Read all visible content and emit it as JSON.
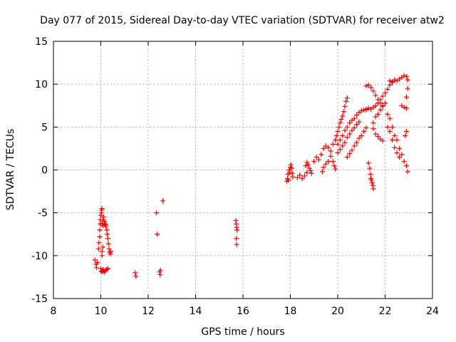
{
  "chart_data": {
    "type": "scatter",
    "title": "Day 077 of 2015, Sidereal Day-to-day VTEC variation (SDTVAR) for receiver atw2",
    "xlabel": "GPS time / hours",
    "ylabel": "SDTVAR / TECUs",
    "xlim": [
      8,
      24
    ],
    "ylim": [
      -15,
      15
    ],
    "xticks": [
      8,
      10,
      12,
      14,
      16,
      18,
      20,
      22,
      24
    ],
    "yticks": [
      -15,
      -10,
      -5,
      0,
      5,
      10,
      15
    ],
    "grid": true,
    "marker": "+",
    "color": "#ff0000",
    "series": [
      {
        "name": "SDTVAR",
        "points": [
          [
            9.75,
            -10.5
          ],
          [
            9.8,
            -11.0
          ],
          [
            9.82,
            -11.4
          ],
          [
            9.85,
            -10.8
          ],
          [
            9.9,
            -9.2
          ],
          [
            9.92,
            -8.5
          ],
          [
            9.95,
            -7.8
          ],
          [
            9.95,
            -7.0
          ],
          [
            9.97,
            -6.3
          ],
          [
            9.98,
            -5.8
          ],
          [
            10.0,
            -5.3
          ],
          [
            10.02,
            -5.0
          ],
          [
            10.03,
            -4.7
          ],
          [
            10.05,
            -4.5
          ],
          [
            10.0,
            -11.5
          ],
          [
            10.02,
            -11.8
          ],
          [
            10.05,
            -11.9
          ],
          [
            10.08,
            -11.7
          ],
          [
            10.1,
            -11.6
          ],
          [
            10.12,
            -11.8
          ],
          [
            10.15,
            -11.9
          ],
          [
            10.2,
            -11.7
          ],
          [
            10.25,
            -11.6
          ],
          [
            10.3,
            -11.5
          ],
          [
            10.05,
            -6.2
          ],
          [
            10.08,
            -6.5
          ],
          [
            10.1,
            -5.8
          ],
          [
            10.12,
            -5.5
          ],
          [
            10.15,
            -6.0
          ],
          [
            10.18,
            -6.4
          ],
          [
            10.2,
            -6.3
          ],
          [
            10.22,
            -6.6
          ],
          [
            10.25,
            -7.0
          ],
          [
            10.27,
            -7.5
          ],
          [
            10.3,
            -8.0
          ],
          [
            10.32,
            -8.6
          ],
          [
            10.35,
            -9.2
          ],
          [
            10.37,
            -9.6
          ],
          [
            10.4,
            -9.8
          ],
          [
            10.42,
            -9.5
          ],
          [
            10.05,
            -10.0
          ],
          [
            10.05,
            -9.5
          ],
          [
            10.08,
            -9.0
          ],
          [
            11.45,
            -12.0
          ],
          [
            11.48,
            -12.4
          ],
          [
            12.35,
            -5.0
          ],
          [
            12.38,
            -7.5
          ],
          [
            12.48,
            -11.9
          ],
          [
            12.5,
            -12.2
          ],
          [
            12.52,
            -11.7
          ],
          [
            12.62,
            -3.6
          ],
          [
            15.7,
            -5.9
          ],
          [
            15.72,
            -6.3
          ],
          [
            15.73,
            -6.7
          ],
          [
            15.75,
            -7.0
          ],
          [
            15.72,
            -8.0
          ],
          [
            15.73,
            -8.7
          ],
          [
            17.85,
            -1.3
          ],
          [
            17.88,
            -1.0
          ],
          [
            17.9,
            -0.5
          ],
          [
            17.93,
            -1.2
          ],
          [
            17.95,
            0.0
          ],
          [
            17.97,
            -0.3
          ],
          [
            18.0,
            0.3
          ],
          [
            18.02,
            0.6
          ],
          [
            18.05,
            0.2
          ],
          [
            18.08,
            -0.4
          ],
          [
            18.1,
            -0.8
          ],
          [
            18.3,
            -0.9
          ],
          [
            18.4,
            -0.6
          ],
          [
            18.5,
            -1.0
          ],
          [
            18.6,
            -0.7
          ],
          [
            18.7,
            -0.3
          ],
          [
            18.65,
            0.5
          ],
          [
            18.7,
            0.9
          ],
          [
            18.75,
            0.6
          ],
          [
            18.8,
            0.2
          ],
          [
            18.85,
            -0.1
          ],
          [
            18.9,
            -0.4
          ],
          [
            19.0,
            1.0
          ],
          [
            19.1,
            1.5
          ],
          [
            19.2,
            1.2
          ],
          [
            19.3,
            1.8
          ],
          [
            19.4,
            2.5
          ],
          [
            19.5,
            2.8
          ],
          [
            19.6,
            2.6
          ],
          [
            19.7,
            2.2
          ],
          [
            19.8,
            3.0
          ],
          [
            19.9,
            3.5
          ],
          [
            19.35,
            -0.2
          ],
          [
            19.4,
            0.3
          ],
          [
            19.5,
            0.7
          ],
          [
            19.6,
            1.0
          ],
          [
            19.7,
            1.6
          ],
          [
            19.8,
            1.0
          ],
          [
            19.85,
            0.5
          ],
          [
            19.9,
            0.1
          ],
          [
            19.95,
            4.0
          ],
          [
            20.0,
            4.5
          ],
          [
            20.05,
            5.0
          ],
          [
            20.1,
            5.5
          ],
          [
            20.15,
            5.9
          ],
          [
            20.2,
            6.3
          ],
          [
            20.25,
            6.8
          ],
          [
            20.3,
            7.4
          ],
          [
            20.35,
            8.0
          ],
          [
            20.4,
            8.4
          ],
          [
            20.0,
            3.0
          ],
          [
            20.1,
            3.5
          ],
          [
            20.2,
            4.0
          ],
          [
            20.3,
            4.6
          ],
          [
            20.4,
            5.0
          ],
          [
            20.5,
            5.5
          ],
          [
            20.6,
            5.8
          ],
          [
            20.7,
            6.0
          ],
          [
            20.8,
            6.4
          ],
          [
            20.9,
            6.7
          ],
          [
            21.0,
            6.9
          ],
          [
            21.1,
            7.0
          ],
          [
            21.2,
            7.1
          ],
          [
            20.0,
            2.0
          ],
          [
            20.1,
            2.4
          ],
          [
            20.2,
            2.8
          ],
          [
            20.3,
            3.2
          ],
          [
            20.4,
            3.8
          ],
          [
            20.5,
            4.2
          ],
          [
            20.6,
            4.6
          ],
          [
            20.7,
            4.9
          ],
          [
            20.8,
            5.3
          ],
          [
            20.9,
            5.6
          ],
          [
            20.4,
            1.5
          ],
          [
            20.5,
            1.9
          ],
          [
            20.6,
            2.3
          ],
          [
            20.7,
            2.8
          ],
          [
            20.8,
            3.2
          ],
          [
            20.9,
            3.7
          ],
          [
            21.0,
            4.0
          ],
          [
            21.1,
            4.5
          ],
          [
            21.2,
            4.9
          ],
          [
            21.2,
            9.8
          ],
          [
            21.3,
            9.9
          ],
          [
            21.4,
            9.6
          ],
          [
            21.5,
            9.2
          ],
          [
            21.6,
            8.7
          ],
          [
            21.7,
            8.2
          ],
          [
            21.8,
            7.8
          ],
          [
            21.9,
            7.5
          ],
          [
            21.2,
            7.0
          ],
          [
            21.3,
            7.2
          ],
          [
            21.4,
            7.1
          ],
          [
            21.5,
            7.3
          ],
          [
            21.6,
            7.5
          ],
          [
            21.7,
            7.8
          ],
          [
            21.8,
            8.2
          ],
          [
            21.9,
            8.6
          ],
          [
            22.0,
            9.0
          ],
          [
            22.1,
            9.4
          ],
          [
            22.2,
            9.9
          ],
          [
            22.3,
            10.2
          ],
          [
            22.4,
            10.5
          ],
          [
            21.5,
            5.5
          ],
          [
            21.6,
            6.2
          ],
          [
            21.7,
            6.5
          ],
          [
            21.8,
            7.0
          ],
          [
            21.9,
            7.4
          ],
          [
            22.0,
            7.8
          ],
          [
            21.5,
            4.8
          ],
          [
            21.6,
            4.2
          ],
          [
            21.7,
            3.9
          ],
          [
            21.8,
            3.6
          ],
          [
            21.9,
            3.4
          ],
          [
            22.1,
            6.5
          ],
          [
            22.2,
            6.0
          ],
          [
            22.3,
            5.0
          ],
          [
            22.4,
            4.0
          ],
          [
            22.5,
            3.5
          ],
          [
            22.6,
            2.5
          ],
          [
            22.7,
            1.8
          ],
          [
            22.8,
            1.0
          ],
          [
            22.9,
            0.5
          ],
          [
            22.95,
            -0.2
          ],
          [
            22.1,
            5.0
          ],
          [
            22.2,
            4.5
          ],
          [
            22.3,
            3.5
          ],
          [
            22.4,
            2.6
          ],
          [
            22.5,
            2.0
          ],
          [
            22.6,
            1.5
          ],
          [
            22.2,
            10.4
          ],
          [
            22.3,
            10.3
          ],
          [
            22.4,
            10.5
          ],
          [
            22.5,
            10.4
          ],
          [
            22.6,
            10.6
          ],
          [
            22.7,
            10.8
          ],
          [
            22.8,
            11.0
          ],
          [
            22.9,
            10.9
          ],
          [
            22.95,
            10.5
          ],
          [
            22.95,
            9.5
          ],
          [
            22.9,
            8.5
          ],
          [
            22.7,
            7.5
          ],
          [
            22.8,
            7.3
          ],
          [
            22.9,
            7.2
          ],
          [
            22.85,
            4.0
          ],
          [
            22.9,
            4.5
          ],
          [
            21.3,
            0.8
          ],
          [
            21.35,
            0.2
          ],
          [
            21.38,
            -0.5
          ],
          [
            21.4,
            -1.0
          ],
          [
            21.42,
            -1.2
          ],
          [
            21.45,
            -1.5
          ],
          [
            21.48,
            -1.8
          ],
          [
            21.5,
            -2.2
          ]
        ]
      }
    ]
  }
}
